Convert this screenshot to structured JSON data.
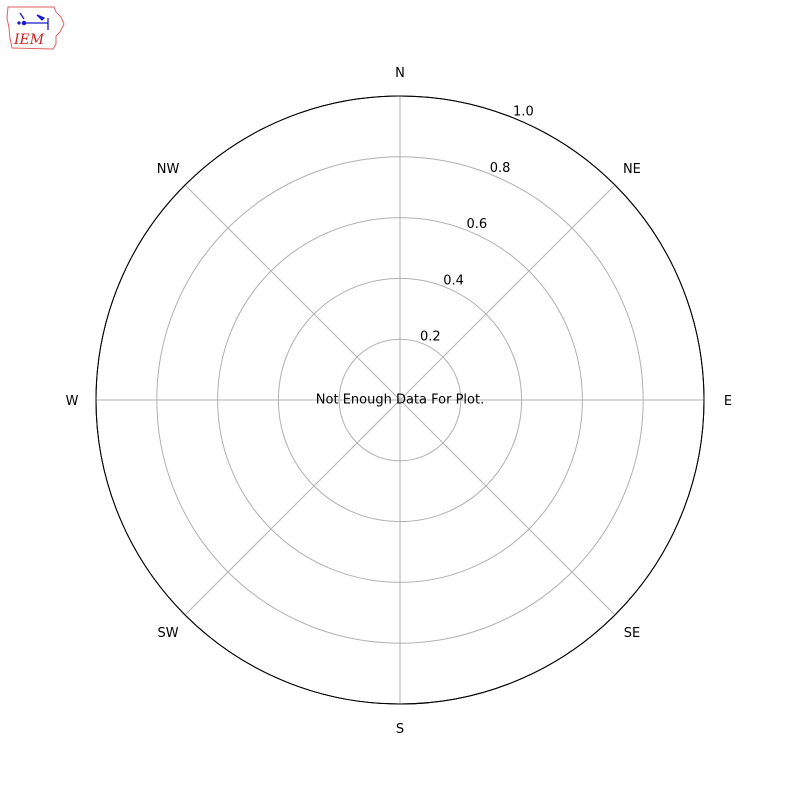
{
  "logo": {
    "text": "IEM",
    "text_color": "#cc2222",
    "outline_color": "#e06060",
    "symbol_color": "#1a1acc"
  },
  "chart_data": {
    "type": "polar",
    "title": "",
    "message": "Not Enough Data For Plot.",
    "direction_labels": [
      "N",
      "NE",
      "E",
      "SE",
      "S",
      "SW",
      "W",
      "NW"
    ],
    "r_ticks": [
      "0.2",
      "0.4",
      "0.6",
      "0.8",
      "1.0"
    ],
    "r_tick_values": [
      0.2,
      0.4,
      0.6,
      0.8,
      1.0
    ],
    "rlim": [
      0,
      1.0
    ],
    "grid": true,
    "series": [],
    "colors": {
      "grid": "#b0b0b0",
      "frame": "#000000",
      "text": "#000000"
    }
  }
}
